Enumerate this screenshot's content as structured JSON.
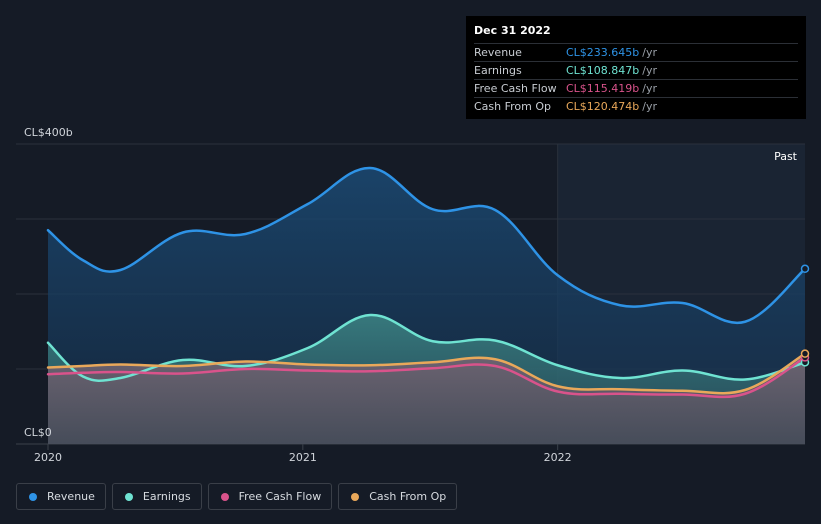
{
  "chart_data": {
    "type": "area",
    "x": [
      2019.96,
      2020.1,
      2020.25,
      2020.5,
      2020.75,
      2021.0,
      2021.25,
      2021.5,
      2021.75,
      2022.0,
      2022.25,
      2022.5,
      2022.75,
      2022.99
    ],
    "ylim": [
      0,
      400
    ],
    "xlim": [
      2019.96,
      2022.99
    ],
    "x_ticks": [
      {
        "value": 2020,
        "label": "2020"
      },
      {
        "value": 2021,
        "label": "2021"
      },
      {
        "value": 2022,
        "label": "2022"
      }
    ],
    "y_top_label": "CL$400b",
    "y_bottom_label": "CL$0",
    "past_label": "Past",
    "past_start": 2022.0,
    "grid": true,
    "series": [
      {
        "name": "Revenue",
        "color": "#2e93e6",
        "values": [
          285,
          245,
          232,
          282,
          280,
          320,
          368,
          313,
          312,
          225,
          185,
          188,
          163,
          233.645
        ]
      },
      {
        "name": "Earnings",
        "color": "#6fe3d2",
        "values": [
          135,
          90,
          88,
          112,
          104,
          128,
          172,
          137,
          138,
          105,
          88,
          98,
          86,
          108.847
        ]
      },
      {
        "name": "Free Cash Flow",
        "color": "#d9538b",
        "values": [
          93,
          95,
          96,
          94,
          100,
          98,
          97,
          101,
          104,
          70,
          67,
          66,
          67,
          115.419
        ]
      },
      {
        "name": "Cash From Op",
        "color": "#e9a85a",
        "values": [
          102,
          104,
          106,
          104,
          110,
          106,
          105,
          109,
          113,
          77,
          73,
          71,
          72,
          120.474
        ]
      }
    ]
  },
  "tooltip": {
    "date": "Dec 31 2022",
    "unit": "/yr",
    "rows": [
      {
        "label": "Revenue",
        "value": "CL$233.645b",
        "color": "#2e93e6"
      },
      {
        "label": "Earnings",
        "value": "CL$108.847b",
        "color": "#6fe3d2"
      },
      {
        "label": "Free Cash Flow",
        "value": "CL$115.419b",
        "color": "#d9538b"
      },
      {
        "label": "Cash From Op",
        "value": "CL$120.474b",
        "color": "#e9a85a"
      }
    ]
  },
  "legend": [
    {
      "label": "Revenue",
      "color": "#2e93e6"
    },
    {
      "label": "Earnings",
      "color": "#6fe3d2"
    },
    {
      "label": "Free Cash Flow",
      "color": "#d9538b"
    },
    {
      "label": "Cash From Op",
      "color": "#e9a85a"
    }
  ]
}
